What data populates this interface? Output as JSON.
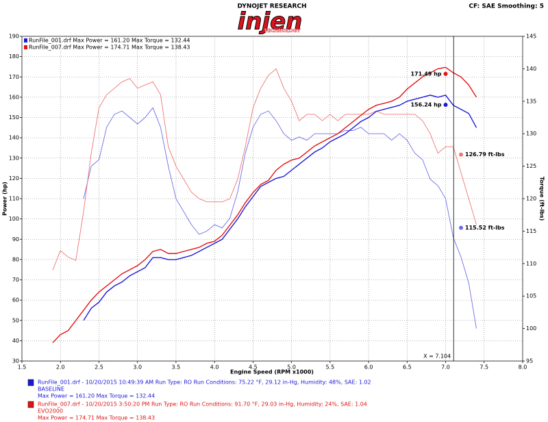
{
  "chart_data": {
    "type": "line",
    "brand": "DYNOJET RESEARCH",
    "logo": "injen",
    "logo_sub": "TECHNOLOGY",
    "settings_text": "CF: SAE  Smoothing: 5",
    "x_label": "Engine Speed (RPM x1000)",
    "y_label": "Power (hp)",
    "y2_label": "Torque (ft-lbs)",
    "xlim": [
      1.5,
      8.0
    ],
    "xticks": [
      1.5,
      {
        "value": 2,
        "label": "2.0"
      },
      2.5,
      {
        "value": 3,
        "label": "3.0"
      },
      3.5,
      {
        "value": 4,
        "label": "4.0"
      },
      4.5,
      {
        "value": 5,
        "label": "5.0"
      },
      5.5,
      {
        "value": 6,
        "label": "6.0"
      },
      6.5,
      {
        "value": 7,
        "label": "7.0"
      },
      7.5,
      {
        "value": 8,
        "label": "8.0"
      }
    ],
    "ylim": [
      30,
      190
    ],
    "yticks": [
      30,
      40,
      50,
      60,
      70,
      80,
      90,
      100,
      110,
      120,
      130,
      140,
      150,
      160,
      170,
      180,
      190
    ],
    "y2lim": [
      95,
      145
    ],
    "y2ticks": [
      95,
      100,
      105,
      110,
      115,
      120,
      125,
      130,
      135,
      140,
      145
    ],
    "grid": true,
    "x": [
      1.9,
      2.0,
      2.1,
      2.2,
      2.3,
      2.4,
      2.5,
      2.6,
      2.7,
      2.8,
      2.9,
      3.0,
      3.1,
      3.2,
      3.3,
      3.4,
      3.5,
      3.6,
      3.7,
      3.8,
      3.9,
      4.0,
      4.1,
      4.2,
      4.3,
      4.4,
      4.5,
      4.6,
      4.7,
      4.8,
      4.9,
      5.0,
      5.1,
      5.2,
      5.3,
      5.4,
      5.5,
      5.6,
      5.7,
      5.8,
      5.9,
      6.0,
      6.1,
      6.2,
      6.3,
      6.4,
      6.5,
      6.6,
      6.7,
      6.8,
      6.9,
      7.0,
      7.1,
      7.2,
      7.3,
      7.4
    ],
    "series": [
      {
        "name": "BASELINE",
        "color": "#1a1ad6",
        "axis": "y",
        "values": [
          null,
          null,
          null,
          null,
          50,
          56,
          59,
          64,
          67,
          69,
          72,
          74,
          76,
          81,
          81,
          80,
          80,
          81,
          82,
          84,
          86,
          88,
          90,
          95,
          100,
          106,
          111,
          116,
          118,
          120,
          121,
          124,
          127,
          130,
          133,
          135,
          138,
          140,
          142,
          145,
          148,
          150,
          153,
          154,
          155,
          156,
          158,
          159,
          160,
          161,
          160,
          161,
          156,
          154,
          152,
          145
        ]
      },
      {
        "name": "EVO2000",
        "color": "#e01414",
        "axis": "y",
        "values": [
          39,
          43,
          45,
          50,
          55,
          60,
          64,
          67,
          70,
          73,
          75,
          77,
          80,
          84,
          85,
          83,
          83,
          84,
          85,
          86,
          88,
          89,
          92,
          97,
          102,
          108,
          113,
          117,
          119,
          124,
          127,
          129,
          130,
          133,
          136,
          138,
          140,
          142,
          145,
          148,
          151,
          154,
          156,
          157,
          158,
          160,
          164,
          167,
          170,
          172,
          174,
          174.7,
          172,
          170,
          166,
          160
        ]
      },
      {
        "color": "#6c6ce8",
        "axis": "y2",
        "values": [
          null,
          null,
          null,
          null,
          120,
          125,
          126,
          131,
          133,
          133.5,
          132.5,
          131.5,
          132.5,
          134,
          131,
          125,
          120,
          118,
          116,
          114.5,
          115,
          116,
          115.5,
          117,
          121,
          127,
          131,
          133,
          133.5,
          132,
          130,
          129,
          129.5,
          129,
          130,
          130,
          130,
          130,
          130.5,
          130.5,
          131,
          130,
          130,
          130,
          129,
          130,
          129,
          127,
          126,
          123,
          122,
          120,
          114,
          111,
          107,
          100
        ]
      },
      {
        "color": "#f07474",
        "axis": "y2",
        "values": [
          109,
          112,
          111,
          110.5,
          118,
          127,
          134,
          136,
          137,
          138,
          138.5,
          137,
          137.5,
          138,
          136,
          128,
          125,
          123,
          121,
          120,
          119.5,
          119.5,
          119.5,
          120,
          123,
          128,
          134,
          137,
          139,
          140,
          137,
          135,
          132,
          133,
          133,
          132,
          133,
          132,
          133,
          133,
          133,
          133,
          133.5,
          133,
          133,
          133,
          133,
          133,
          132,
          130,
          127,
          128,
          128,
          124,
          120,
          116
        ]
      }
    ],
    "markers": [
      {
        "x": 7.0,
        "value": 171.49,
        "label": "171.49 hp",
        "axis": "y",
        "color": "#e01414"
      },
      {
        "x": 7.0,
        "value": 156.24,
        "label": "156.24 hp",
        "axis": "y",
        "color": "#1a1ad6"
      },
      {
        "x": 7.2,
        "value": 126.79,
        "label": "126.79 ft-lbs",
        "axis": "y2",
        "color": "#f07474"
      },
      {
        "x": 7.2,
        "value": 115.52,
        "label": "115.52 ft-lbs",
        "axis": "y2",
        "color": "#6c6ce8"
      }
    ],
    "cursor": {
      "value": 7.104,
      "label": "X = 7.104"
    },
    "top_legend": [
      {
        "text": "RunFile_001.drf Max Power = 161.20",
        "torque": "Max Torque = 132.44",
        "color": "#1a1ad6"
      },
      {
        "text": "RunFile_007.drf Max Power = 174.71",
        "torque": "Max Torque = 138.43",
        "color": "#e01414"
      }
    ],
    "runs": [
      {
        "line": "RunFile_001.drf - 10/20/2015 10:49:39 AM  Run Type: RO  Run Conditions: 75.22 °F, 29.12 in-Hg,  Humidity:  48%, SAE: 1.02",
        "name": "BASELINE",
        "max": "Max Power = 161.20  Max Torque = 132.44",
        "color": "#1a1ad6"
      },
      {
        "line": "RunFile_007.drf - 10/20/2015 3:50:20 PM  Run Type: RO  Run Conditions: 91.70 °F, 29.03 in-Hg,  Humidity:  24%, SAE: 1.04",
        "name": "EVO2000",
        "max": "Max Power = 174.71  Max Torque = 138.43",
        "color": "#e01414"
      }
    ]
  }
}
